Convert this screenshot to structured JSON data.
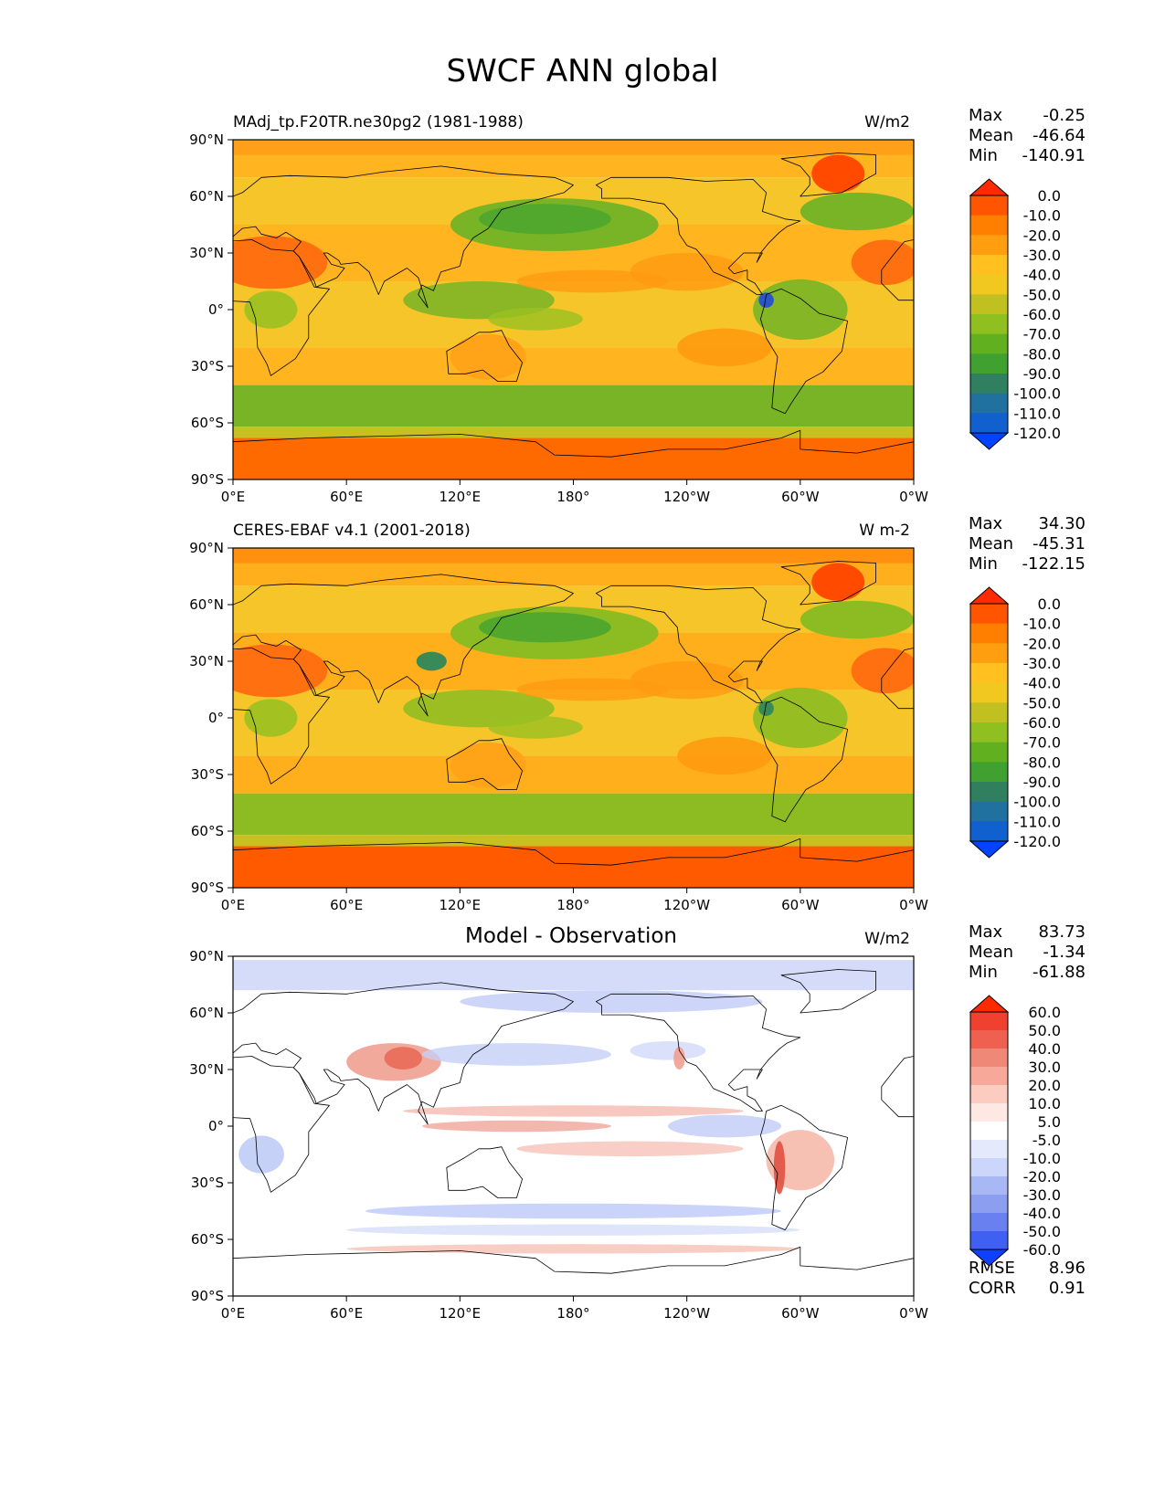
{
  "figure_title": "SWCF ANN global",
  "panels": [
    {
      "title": "MAdj_tp.F20TR.ne30pg2 (1981-1988)",
      "title_style": "left",
      "units": "W/m2",
      "stats": {
        "max_label": "Max",
        "max": "-0.25",
        "mean_label": "Mean",
        "mean": "-46.64",
        "min_label": "Min",
        "min": "-140.91"
      },
      "colorbar": {
        "labels": [
          "0.0",
          "-10.0",
          "-20.0",
          "-30.0",
          "-40.0",
          "-50.0",
          "-60.0",
          "-70.0",
          "-80.0",
          "-90.0",
          "-100.0",
          "-110.0",
          "-120.0"
        ],
        "colors": [
          "#ff2a00",
          "#ff5500",
          "#ff7f00",
          "#ff9f10",
          "#ffc020",
          "#f0c820",
          "#c0c020",
          "#90c020",
          "#60b020",
          "#40a030",
          "#308060",
          "#2070a0",
          "#1060d0",
          "#0044ff"
        ]
      }
    },
    {
      "title": "CERES-EBAF v4.1 (2001-2018)",
      "title_style": "left",
      "units": "W m-2",
      "stats": {
        "max_label": "Max",
        "max": "34.30",
        "mean_label": "Mean",
        "mean": "-45.31",
        "min_label": "Min",
        "min": "-122.15"
      },
      "colorbar": {
        "labels": [
          "0.0",
          "-10.0",
          "-20.0",
          "-30.0",
          "-40.0",
          "-50.0",
          "-60.0",
          "-70.0",
          "-80.0",
          "-90.0",
          "-100.0",
          "-110.0",
          "-120.0"
        ],
        "colors": [
          "#ff2a00",
          "#ff5500",
          "#ff7f00",
          "#ff9f10",
          "#ffc020",
          "#f0c820",
          "#c0c020",
          "#90c020",
          "#60b020",
          "#40a030",
          "#308060",
          "#2070a0",
          "#1060d0",
          "#0044ff"
        ]
      }
    },
    {
      "title": "Model - Observation",
      "title_style": "center",
      "units": "W/m2",
      "stats": {
        "max_label": "Max",
        "max": "83.73",
        "mean_label": "Mean",
        "mean": "-1.34",
        "min_label": "Min",
        "min": "-61.88"
      },
      "colorbar": {
        "labels": [
          "60.0",
          "50.0",
          "40.0",
          "30.0",
          "20.0",
          "10.0",
          "5.0",
          "-5.0",
          "-10.0",
          "-20.0",
          "-30.0",
          "-40.0",
          "-50.0",
          "-60.0"
        ],
        "colors": [
          "#ff2a00",
          "#f04030",
          "#f06050",
          "#f08878",
          "#f8a898",
          "#fcccc0",
          "#fde8e4",
          "#ffffff",
          "#e4eafc",
          "#ccd6fa",
          "#a8b8f4",
          "#8c9ef0",
          "#6880f0",
          "#4060f4",
          "#1040ff"
        ]
      },
      "footer": {
        "rmse_label": "RMSE",
        "rmse": "8.96",
        "corr_label": "CORR",
        "corr": "0.91"
      }
    }
  ],
  "map_axes": {
    "lat_ticks": [
      "90°N",
      "60°N",
      "30°N",
      "0°",
      "30°S",
      "60°S",
      "90°S"
    ],
    "lon_ticks": [
      "0°E",
      "60°E",
      "120°E",
      "180°",
      "120°W",
      "60°W",
      "0°W"
    ]
  },
  "field_style": {
    "panel_1": {
      "ocean": "#ffb420",
      "tropics": "#f5c52a",
      "storm_track": "#78b426",
      "polar": "#ff6a00",
      "deep_convection": "#2b55c8"
    },
    "panel_2": {
      "ocean": "#ffae1c",
      "tropics": "#f5c52a",
      "storm_track": "#8cbc22",
      "polar": "#ff5a00",
      "deep_convection": "#3a8a58"
    },
    "panel_3": {
      "ocean": "#ffffff",
      "positive": "#f4a898",
      "negative": "#b8c6f6",
      "coast": "#000000"
    }
  }
}
